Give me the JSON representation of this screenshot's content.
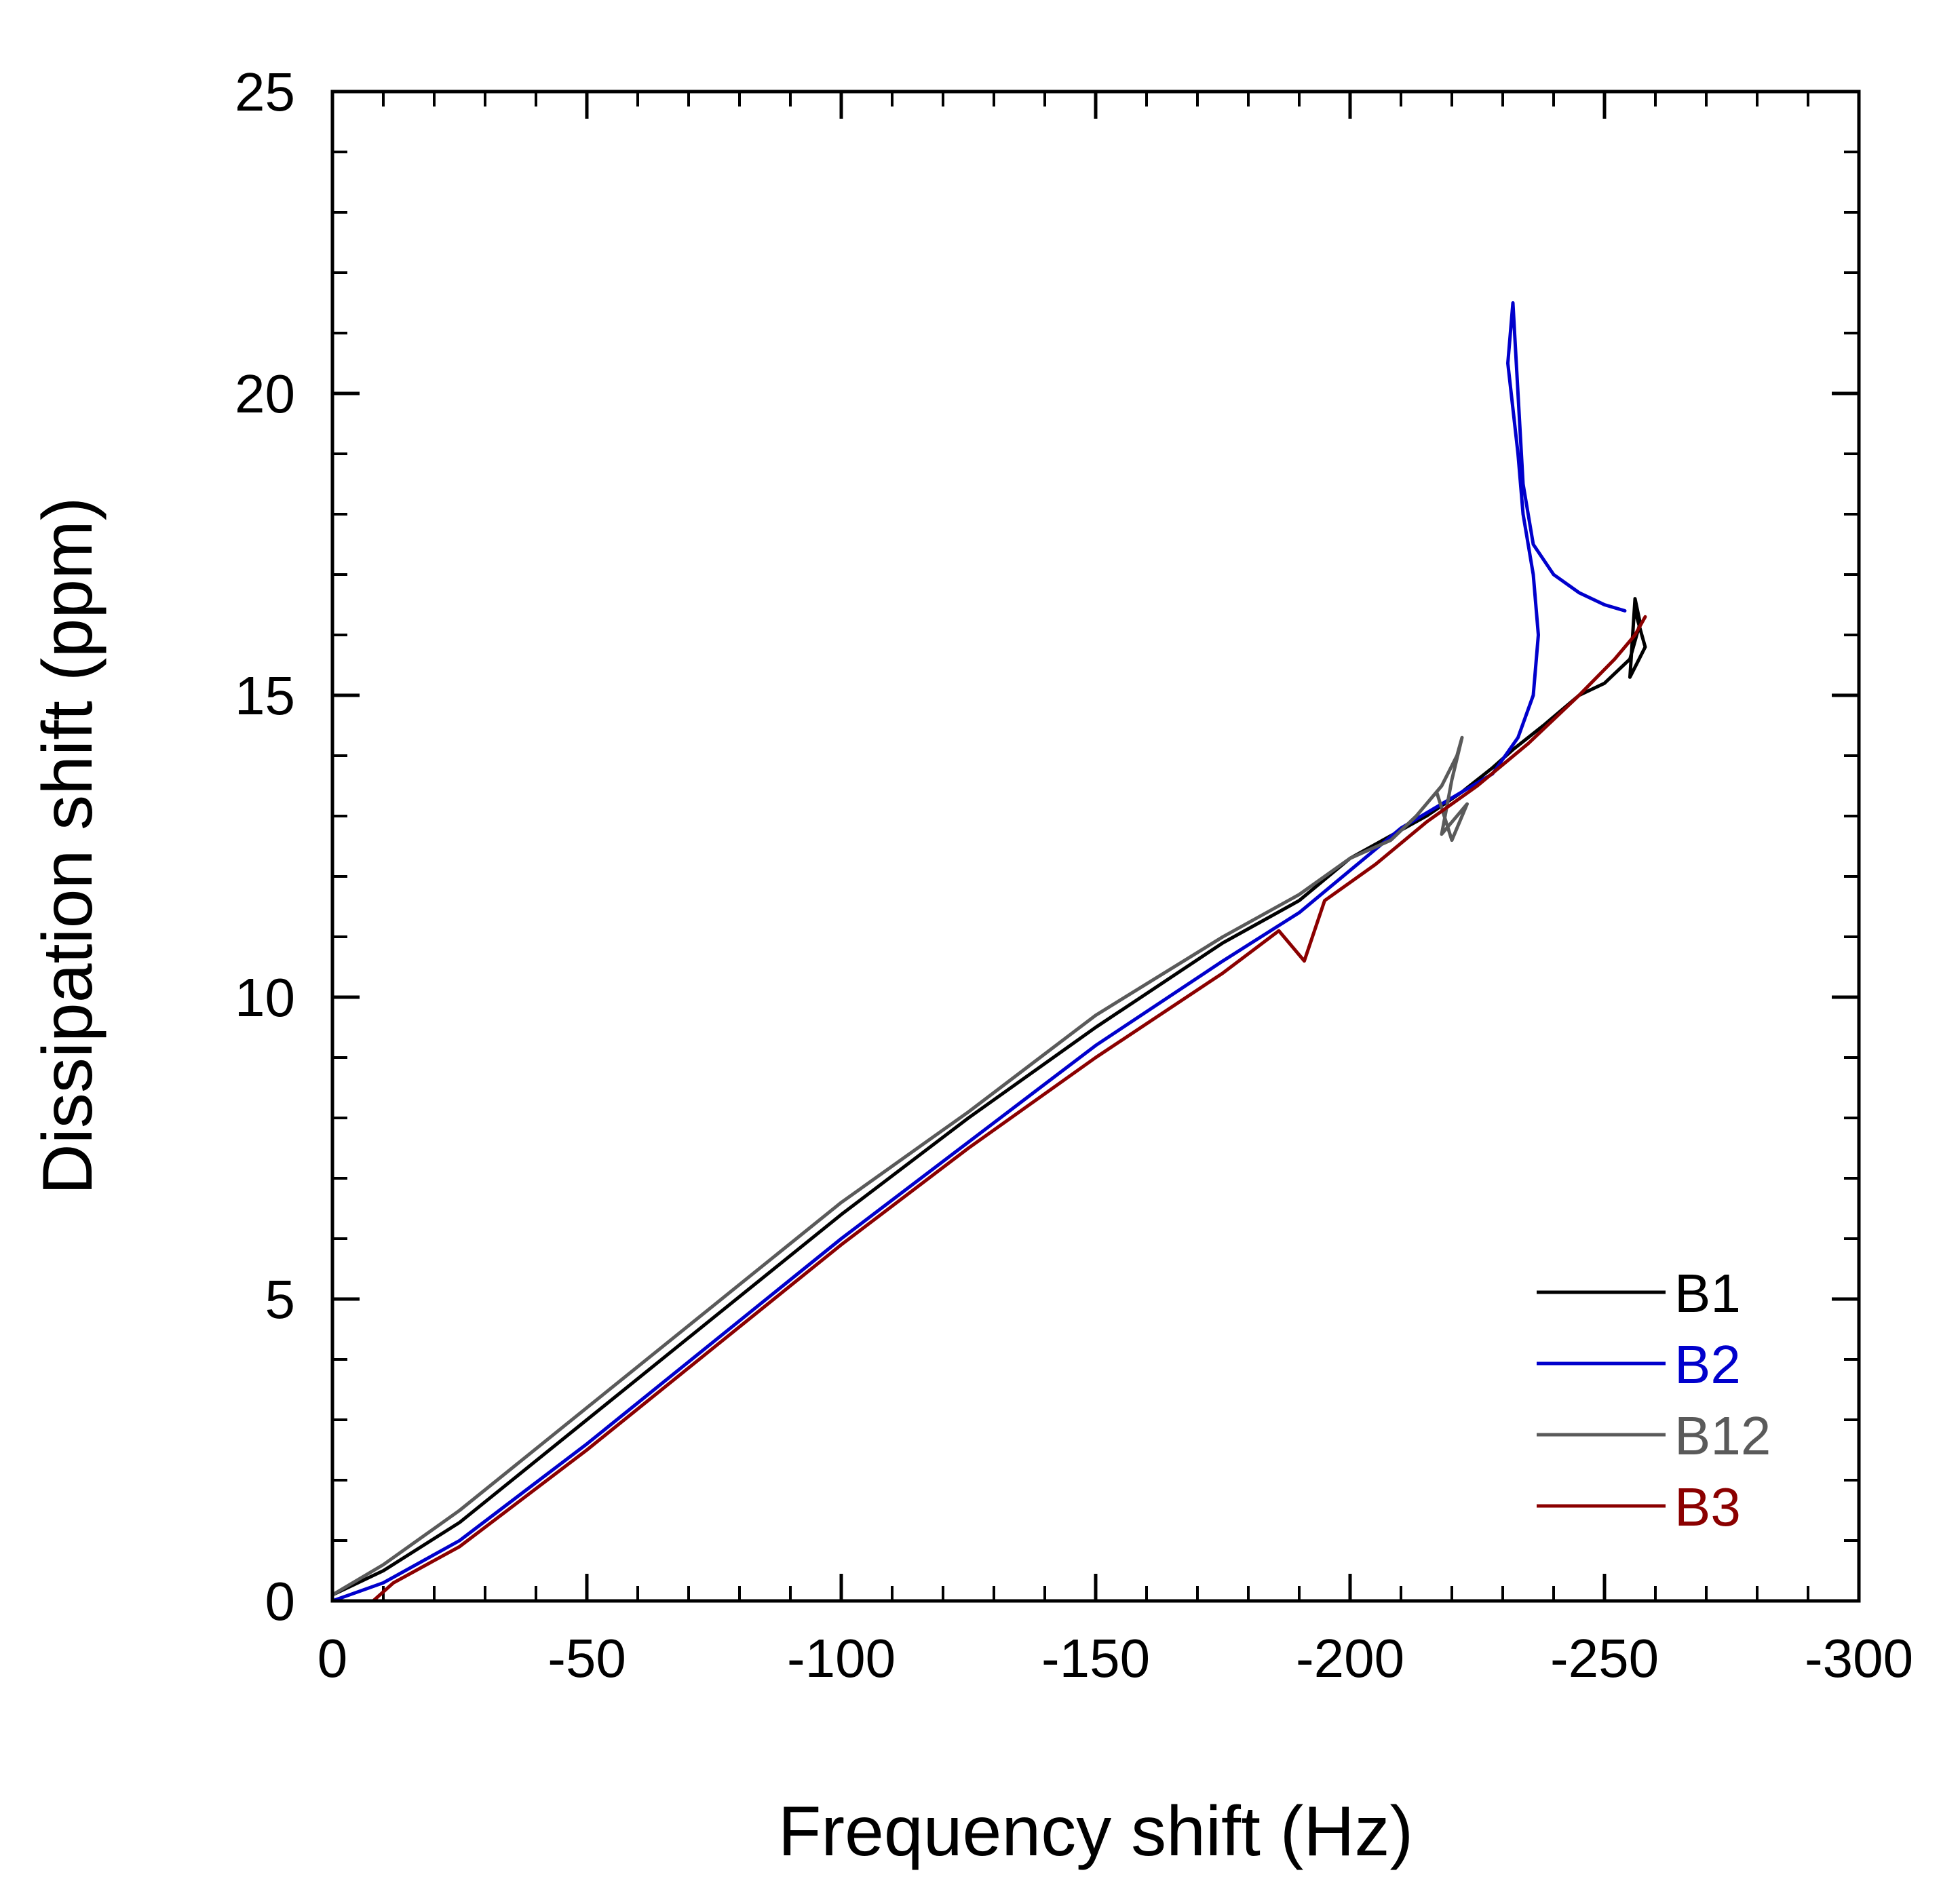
{
  "chart_data": {
    "type": "line",
    "title": "",
    "xlabel": "Frequency shift (Hz)",
    "ylabel": "Dissipation shift (ppm)",
    "xlim": [
      0,
      -300
    ],
    "ylim": [
      0,
      25
    ],
    "x_major_ticks": [
      0,
      -50,
      -100,
      -150,
      -200,
      -250,
      -300
    ],
    "x_tick_labels": [
      "0",
      "-50",
      "-100",
      "-150",
      "-200",
      "-250",
      "-300"
    ],
    "y_major_ticks": [
      0,
      5,
      10,
      15,
      20,
      25
    ],
    "y_tick_labels": [
      "0",
      "5",
      "10",
      "15",
      "20",
      "25"
    ],
    "x_minor_step": 10,
    "y_minor_step": 1,
    "grid": false,
    "legend_position": "bottom-right",
    "series": [
      {
        "name": "B1",
        "color": "#000000",
        "x": [
          0,
          -10,
          -25,
          -50,
          -75,
          -100,
          -125,
          -150,
          -175,
          -190,
          -200,
          -215,
          -222,
          -228,
          -232,
          -238,
          -245,
          -250,
          -255,
          -257,
          -256,
          -255,
          -258,
          -256
        ],
        "y": [
          0.1,
          0.5,
          1.3,
          3.0,
          4.7,
          6.4,
          8.0,
          9.5,
          10.9,
          11.6,
          12.3,
          13.0,
          13.4,
          13.8,
          14.1,
          14.5,
          15.0,
          15.2,
          15.6,
          16.2,
          16.6,
          15.3,
          15.8,
          16.4
        ]
      },
      {
        "name": "B2",
        "color": "#0000cc",
        "x": [
          0,
          -10,
          -25,
          -50,
          -75,
          -100,
          -125,
          -150,
          -175,
          -190,
          -200,
          -210,
          -220,
          -228,
          -233,
          -236,
          -237,
          -236,
          -234,
          -233,
          -231,
          -232,
          -233,
          -234,
          -236,
          -240,
          -245,
          -250,
          -254
        ],
        "y": [
          0.0,
          0.3,
          1.0,
          2.6,
          4.3,
          6.0,
          7.6,
          9.2,
          10.6,
          11.4,
          12.1,
          12.8,
          13.3,
          13.7,
          14.3,
          15.0,
          16.0,
          17.0,
          18.0,
          19.0,
          20.5,
          21.5,
          20.0,
          18.5,
          17.5,
          17.0,
          16.7,
          16.5,
          16.4
        ]
      },
      {
        "name": "B12",
        "color": "#5a5a5a",
        "x": [
          0,
          -10,
          -25,
          -50,
          -75,
          -100,
          -125,
          -150,
          -175,
          -190,
          -200,
          -208,
          -213,
          -218,
          -221,
          -222,
          -220,
          -218,
          -223,
          -220,
          -217
        ],
        "y": [
          0.1,
          0.6,
          1.5,
          3.2,
          4.9,
          6.6,
          8.1,
          9.7,
          11.0,
          11.7,
          12.3,
          12.6,
          13.0,
          13.5,
          14.0,
          14.3,
          13.6,
          12.7,
          13.2,
          12.6,
          13.4
        ]
      },
      {
        "name": "B3",
        "color": "#8b0000",
        "x": [
          -8,
          -12,
          -25,
          -50,
          -75,
          -100,
          -125,
          -150,
          -175,
          -186,
          -191,
          -195,
          -205,
          -215,
          -225,
          -235,
          -245,
          -252,
          -256,
          -258
        ],
        "y": [
          0.0,
          0.3,
          0.9,
          2.5,
          4.2,
          5.9,
          7.5,
          9.0,
          10.4,
          11.1,
          10.6,
          11.6,
          12.2,
          12.9,
          13.5,
          14.2,
          15.0,
          15.6,
          16.0,
          16.3
        ]
      }
    ]
  }
}
